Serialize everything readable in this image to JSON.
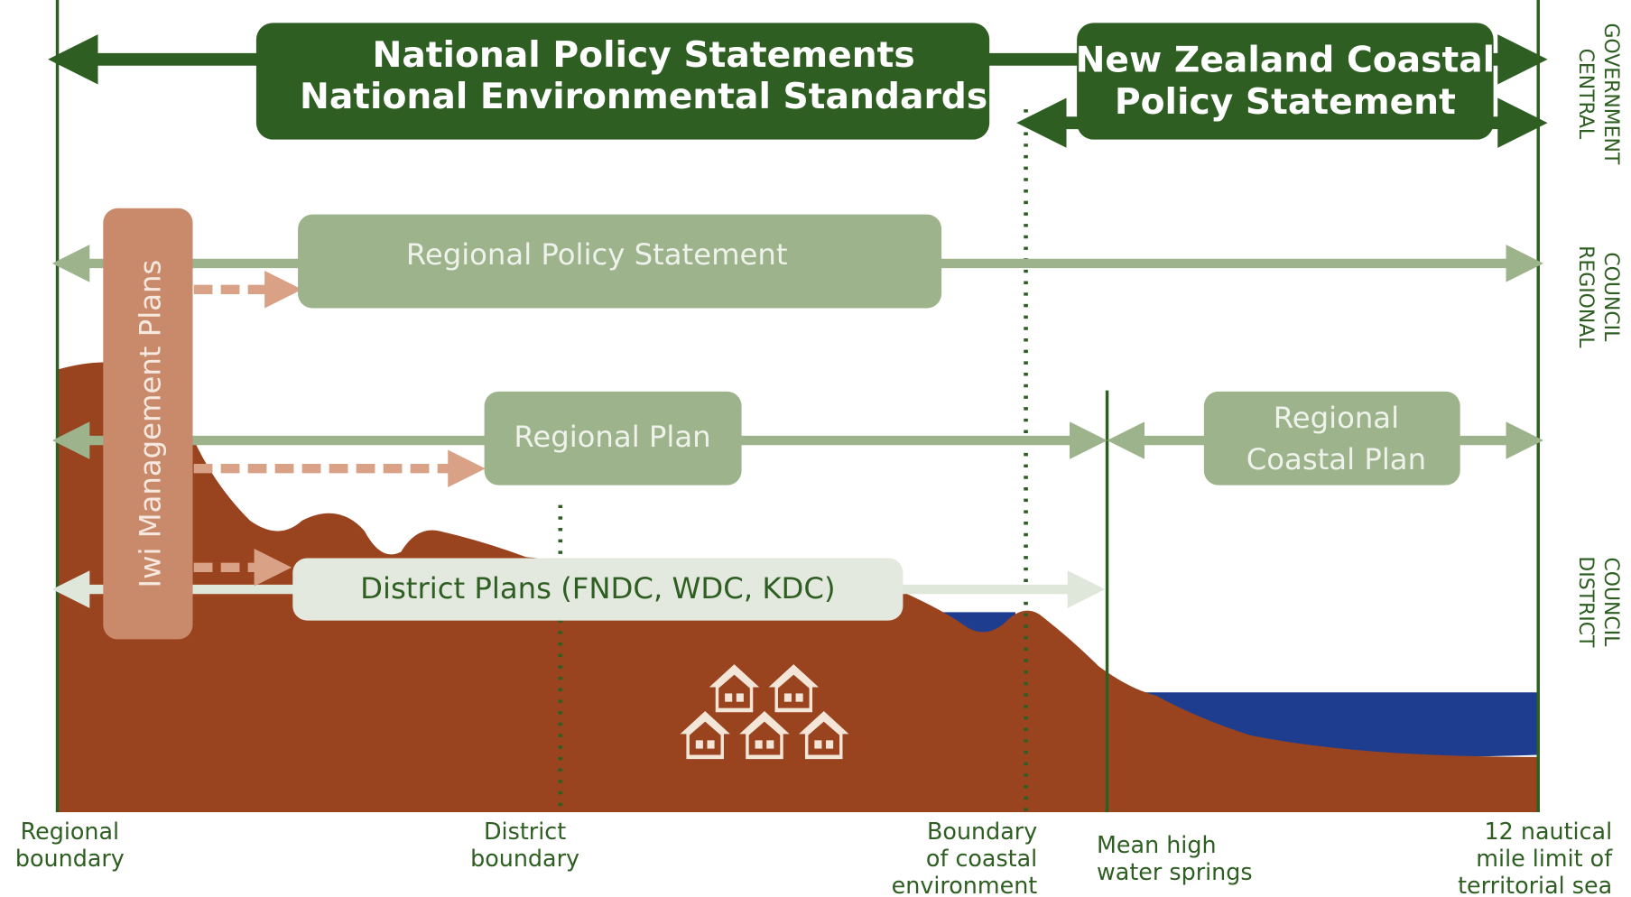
{
  "boxes": [
    {
      "lines": [
        "National Policy Statements",
        "National Environmental Standards"
      ]
    },
    {
      "lines": [
        "New Zealand Coastal",
        "Policy Statement"
      ]
    },
    {
      "lines": [
        "Regional Policy Statement"
      ]
    },
    {
      "lines": [
        "Regional Plan"
      ]
    },
    {
      "lines": [
        "Regional",
        "Coastal Plan"
      ]
    },
    {
      "lines": [
        "District Plans (FNDC, WDC, KDC)"
      ]
    },
    {
      "lines": [
        "Iwi Management Plans"
      ]
    }
  ],
  "side_labels": [
    {
      "lines": [
        "CENTRAL",
        "GOVERNMENT"
      ]
    },
    {
      "lines": [
        "REGIONAL",
        "COUNCIL"
      ]
    },
    {
      "lines": [
        "DISTRICT",
        "COUNCIL"
      ]
    }
  ],
  "boundary_labels": [
    {
      "lines": [
        "Regional",
        "boundary"
      ]
    },
    {
      "lines": [
        "District",
        "boundary"
      ]
    },
    {
      "lines": [
        "Boundary",
        "of coastal",
        "environment"
      ]
    },
    {
      "lines": [
        "Mean high",
        "water springs"
      ]
    },
    {
      "lines": [
        "12 nautical",
        "mile limit of",
        "territorial sea"
      ]
    }
  ]
}
